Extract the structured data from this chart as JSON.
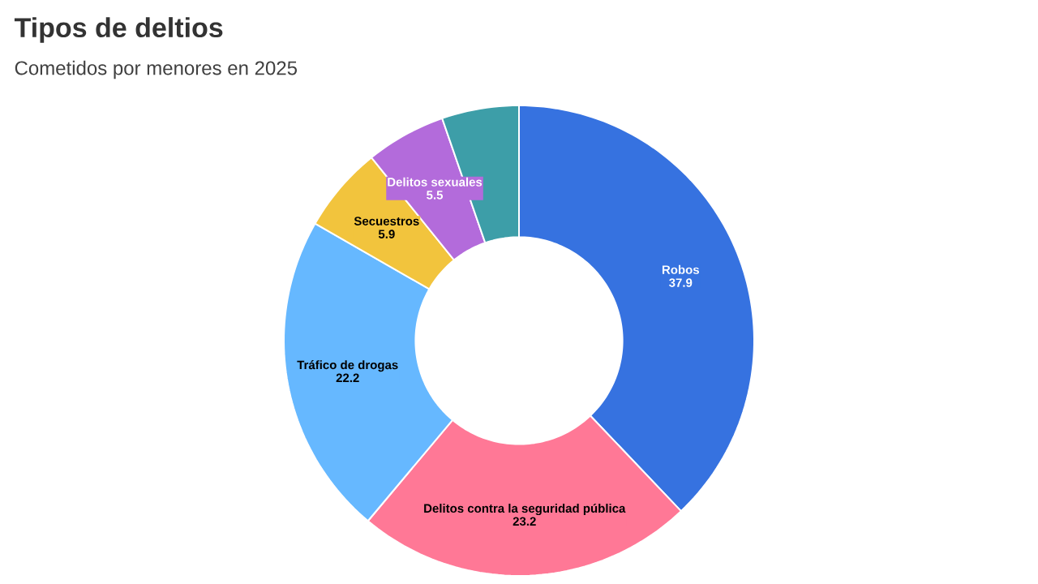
{
  "chart_data": {
    "type": "donut",
    "title": "Tipos de deltios",
    "subtitle": "Cometidos por menores en 2025",
    "categories": [
      "Robos",
      "Delitos contra la seguridad pública",
      "Tráfico de drogas",
      "Secuestros",
      "Delitos sexuales",
      null
    ],
    "values": [
      37.9,
      23.2,
      22.2,
      5.9,
      5.5,
      5.3
    ],
    "value_labels": [
      "37.9",
      "23.2",
      "22.2",
      "5.9",
      "5.5",
      null
    ],
    "colors": [
      "#3672e0",
      "#ff7896",
      "#66b8ff",
      "#f2c43d",
      "#b36bdb",
      "#3d9ea8"
    ]
  }
}
